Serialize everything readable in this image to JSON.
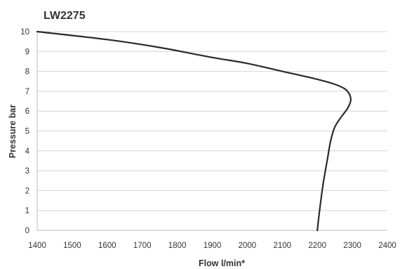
{
  "chart_data": {
    "type": "line",
    "title": "LW2275",
    "xlabel": "Flow l/min*",
    "ylabel": "Pressure bar",
    "xlim": [
      1400,
      2400
    ],
    "ylim": [
      0,
      10
    ],
    "x_ticks": [
      "1400",
      "1500",
      "1600",
      "1700",
      "1800",
      "1900",
      "2000",
      "2100",
      "2200",
      "2300",
      "2400"
    ],
    "y_ticks": [
      "0",
      "1",
      "2",
      "3",
      "4",
      "5",
      "6",
      "7",
      "8",
      "9",
      "10"
    ],
    "grid": true,
    "legend": "none",
    "series": [
      {
        "color": "#2a2a2a",
        "points": [
          {
            "x": 1400,
            "y": 10
          },
          {
            "x": 1600,
            "y": 9.6
          },
          {
            "x": 1750,
            "y": 9.2
          },
          {
            "x": 1900,
            "y": 8.7
          },
          {
            "x": 2000,
            "y": 8.4
          },
          {
            "x": 2100,
            "y": 8.0
          },
          {
            "x": 2200,
            "y": 7.6
          },
          {
            "x": 2250,
            "y": 7.35
          },
          {
            "x": 2280,
            "y": 7.1
          },
          {
            "x": 2293,
            "y": 6.8
          },
          {
            "x": 2295,
            "y": 6.5
          },
          {
            "x": 2285,
            "y": 6.1
          },
          {
            "x": 2268,
            "y": 5.7
          },
          {
            "x": 2250,
            "y": 5.2
          },
          {
            "x": 2238,
            "y": 4.5
          },
          {
            "x": 2228,
            "y": 3.5
          },
          {
            "x": 2218,
            "y": 2.5
          },
          {
            "x": 2210,
            "y": 1.5
          },
          {
            "x": 2203,
            "y": 0.5
          },
          {
            "x": 2200,
            "y": 0
          }
        ]
      }
    ]
  }
}
